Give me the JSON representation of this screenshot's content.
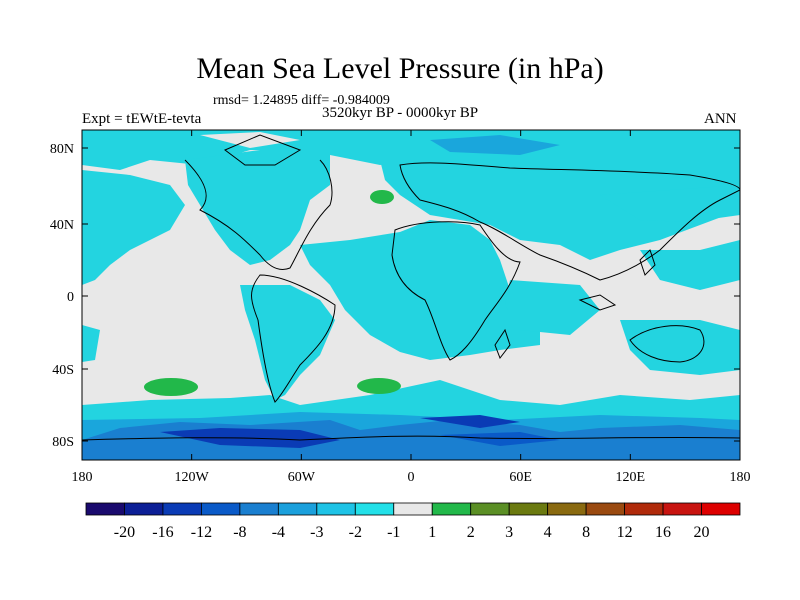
{
  "title": "Mean Sea Level Pressure (in hPa)",
  "stats": "rmsd= 1.24895 diff= -0.984009",
  "period": "3520kyr BP - 0000kyr BP",
  "experiment": "Expt = tEWtE-tevta",
  "season": "ANN",
  "lat_ticks": [
    "80N",
    "40N",
    "0",
    "40S",
    "80S"
  ],
  "lon_ticks": [
    "180",
    "120W",
    "60W",
    "0",
    "60E",
    "120E",
    "180"
  ],
  "colorbar": {
    "labels": [
      "-20",
      "-16",
      "-12",
      "-8",
      "-4",
      "-3",
      "-2",
      "-1",
      "1",
      "2",
      "3",
      "4",
      "8",
      "12",
      "16",
      "20"
    ],
    "colors": [
      "#1a0a6e",
      "#0c1f96",
      "#0a3bb5",
      "#0a5ac8",
      "#1a7fd0",
      "#1ba0dc",
      "#1ec3e6",
      "#23e0e8",
      "#e8e8e8",
      "#22b84a",
      "#5b8f25",
      "#6b7a10",
      "#8a6a10",
      "#9a4a10",
      "#b02a0a",
      "#c81410",
      "#dd0000"
    ]
  },
  "map_colors": {
    "ocean_neutral": "#e8e8e8",
    "cyan": "#23d4e0",
    "lightblue": "#1aa6dc",
    "blue": "#1a7fd0",
    "darkblue": "#0a3bb5",
    "green": "#22b84a"
  }
}
